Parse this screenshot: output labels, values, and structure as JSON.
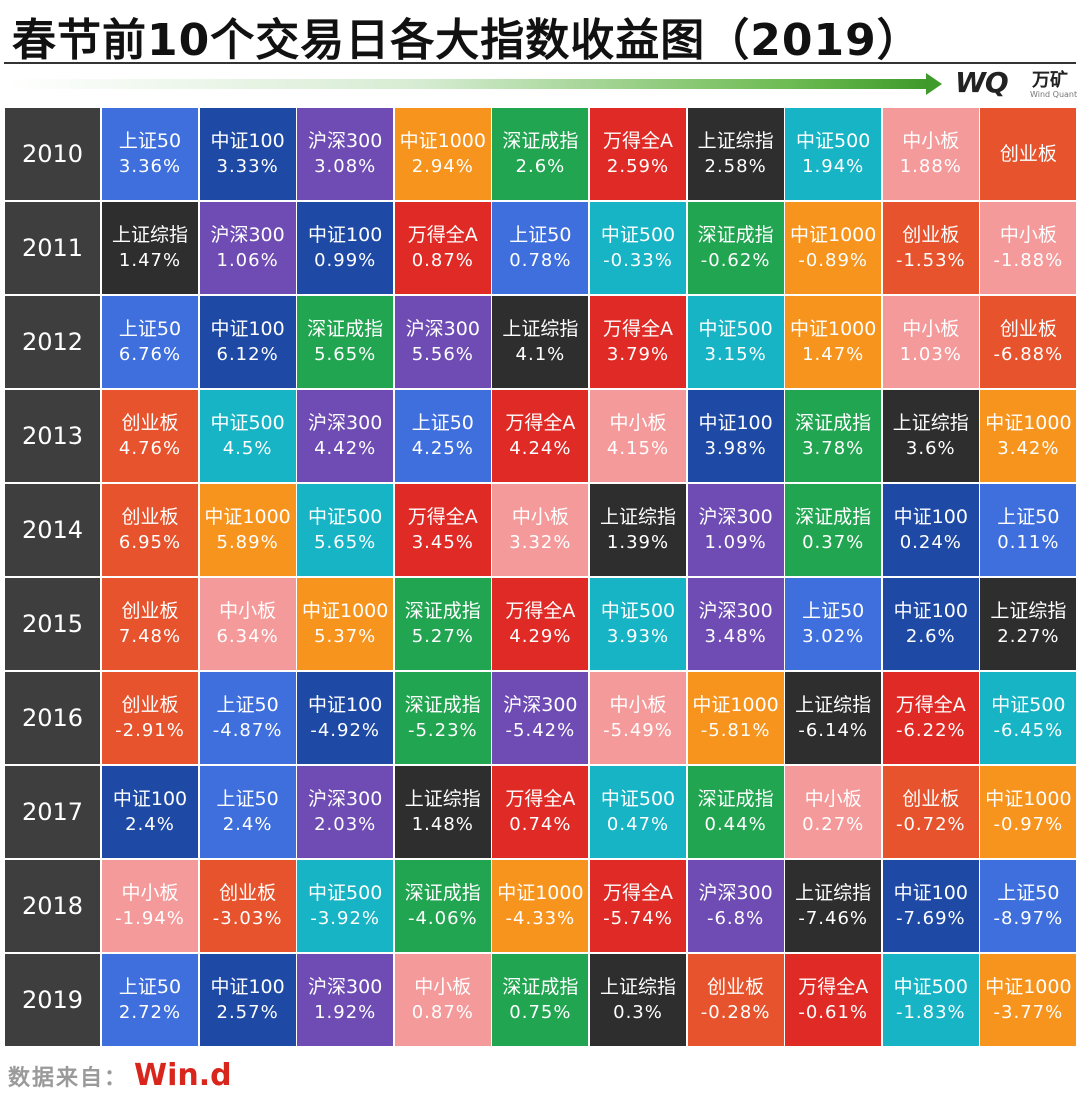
{
  "title": "春节前10个交易日各大指数收益图（2019）",
  "brand": {
    "logo": "WQ",
    "name": "万矿",
    "sub": "Wind Quant"
  },
  "footer": {
    "label": "数据来自：",
    "value": "Win.d"
  },
  "colors": {
    "上证50": "#3f6fdd",
    "中证100": "#1e4aa6",
    "沪深300": "#6e4cb3",
    "中证1000": "#f7941d",
    "深证成指": "#22a551",
    "万得全A": "#e02a26",
    "上证综指": "#2e2e2e",
    "中证500": "#16b4c5",
    "中小板": "#f59a9a",
    "创业板": "#e6532d",
    "year": "#3e3e3e"
  },
  "chart_data": {
    "type": "table",
    "title": "春节前10个交易日各大指数收益图（2019）",
    "rows": [
      {
        "year": "2010",
        "cells": [
          {
            "name": "上证50",
            "value": "3.36%"
          },
          {
            "name": "中证100",
            "value": "3.33%"
          },
          {
            "name": "沪深300",
            "value": "3.08%"
          },
          {
            "name": "中证1000",
            "value": "2.94%"
          },
          {
            "name": "深证成指",
            "value": "2.6%"
          },
          {
            "name": "万得全A",
            "value": "2.59%"
          },
          {
            "name": "上证综指",
            "value": "2.58%"
          },
          {
            "name": "中证500",
            "value": "1.94%"
          },
          {
            "name": "中小板",
            "value": "1.88%"
          },
          {
            "name": "创业板",
            "value": ""
          }
        ]
      },
      {
        "year": "2011",
        "cells": [
          {
            "name": "上证综指",
            "value": "1.47%"
          },
          {
            "name": "沪深300",
            "value": "1.06%"
          },
          {
            "name": "中证100",
            "value": "0.99%"
          },
          {
            "name": "万得全A",
            "value": "0.87%"
          },
          {
            "name": "上证50",
            "value": "0.78%"
          },
          {
            "name": "中证500",
            "value": "-0.33%"
          },
          {
            "name": "深证成指",
            "value": "-0.62%"
          },
          {
            "name": "中证1000",
            "value": "-0.89%"
          },
          {
            "name": "创业板",
            "value": "-1.53%"
          },
          {
            "name": "中小板",
            "value": "-1.88%"
          }
        ]
      },
      {
        "year": "2012",
        "cells": [
          {
            "name": "上证50",
            "value": "6.76%"
          },
          {
            "name": "中证100",
            "value": "6.12%"
          },
          {
            "name": "深证成指",
            "value": "5.65%"
          },
          {
            "name": "沪深300",
            "value": "5.56%"
          },
          {
            "name": "上证综指",
            "value": "4.1%"
          },
          {
            "name": "万得全A",
            "value": "3.79%"
          },
          {
            "name": "中证500",
            "value": "3.15%"
          },
          {
            "name": "中证1000",
            "value": "1.47%"
          },
          {
            "name": "中小板",
            "value": "1.03%"
          },
          {
            "name": "创业板",
            "value": "-6.88%"
          }
        ]
      },
      {
        "year": "2013",
        "cells": [
          {
            "name": "创业板",
            "value": "4.76%"
          },
          {
            "name": "中证500",
            "value": "4.5%"
          },
          {
            "name": "沪深300",
            "value": "4.42%"
          },
          {
            "name": "上证50",
            "value": "4.25%"
          },
          {
            "name": "万得全A",
            "value": "4.24%"
          },
          {
            "name": "中小板",
            "value": "4.15%"
          },
          {
            "name": "中证100",
            "value": "3.98%"
          },
          {
            "name": "深证成指",
            "value": "3.78%"
          },
          {
            "name": "上证综指",
            "value": "3.6%"
          },
          {
            "name": "中证1000",
            "value": "3.42%"
          }
        ]
      },
      {
        "year": "2014",
        "cells": [
          {
            "name": "创业板",
            "value": "6.95%"
          },
          {
            "name": "中证1000",
            "value": "5.89%"
          },
          {
            "name": "中证500",
            "value": "5.65%"
          },
          {
            "name": "万得全A",
            "value": "3.45%"
          },
          {
            "name": "中小板",
            "value": "3.32%"
          },
          {
            "name": "上证综指",
            "value": "1.39%"
          },
          {
            "name": "沪深300",
            "value": "1.09%"
          },
          {
            "name": "深证成指",
            "value": "0.37%"
          },
          {
            "name": "中证100",
            "value": "0.24%"
          },
          {
            "name": "上证50",
            "value": "0.11%"
          }
        ]
      },
      {
        "year": "2015",
        "cells": [
          {
            "name": "创业板",
            "value": "7.48%"
          },
          {
            "name": "中小板",
            "value": "6.34%"
          },
          {
            "name": "中证1000",
            "value": "5.37%"
          },
          {
            "name": "深证成指",
            "value": "5.27%"
          },
          {
            "name": "万得全A",
            "value": "4.29%"
          },
          {
            "name": "中证500",
            "value": "3.93%"
          },
          {
            "name": "沪深300",
            "value": "3.48%"
          },
          {
            "name": "上证50",
            "value": "3.02%"
          },
          {
            "name": "中证100",
            "value": "2.6%"
          },
          {
            "name": "上证综指",
            "value": "2.27%"
          }
        ]
      },
      {
        "year": "2016",
        "cells": [
          {
            "name": "创业板",
            "value": "-2.91%"
          },
          {
            "name": "上证50",
            "value": "-4.87%"
          },
          {
            "name": "中证100",
            "value": "-4.92%"
          },
          {
            "name": "深证成指",
            "value": "-5.23%"
          },
          {
            "name": "沪深300",
            "value": "-5.42%"
          },
          {
            "name": "中小板",
            "value": "-5.49%"
          },
          {
            "name": "中证1000",
            "value": "-5.81%"
          },
          {
            "name": "上证综指",
            "value": "-6.14%"
          },
          {
            "name": "万得全A",
            "value": "-6.22%"
          },
          {
            "name": "中证500",
            "value": "-6.45%"
          }
        ]
      },
      {
        "year": "2017",
        "cells": [
          {
            "name": "中证100",
            "value": "2.4%"
          },
          {
            "name": "上证50",
            "value": "2.4%"
          },
          {
            "name": "沪深300",
            "value": "2.03%"
          },
          {
            "name": "上证综指",
            "value": "1.48%"
          },
          {
            "name": "万得全A",
            "value": "0.74%"
          },
          {
            "name": "中证500",
            "value": "0.47%"
          },
          {
            "name": "深证成指",
            "value": "0.44%"
          },
          {
            "name": "中小板",
            "value": "0.27%"
          },
          {
            "name": "创业板",
            "value": "-0.72%"
          },
          {
            "name": "中证1000",
            "value": "-0.97%"
          }
        ]
      },
      {
        "year": "2018",
        "cells": [
          {
            "name": "中小板",
            "value": "-1.94%"
          },
          {
            "name": "创业板",
            "value": "-3.03%"
          },
          {
            "name": "中证500",
            "value": "-3.92%"
          },
          {
            "name": "深证成指",
            "value": "-4.06%"
          },
          {
            "name": "中证1000",
            "value": "-4.33%"
          },
          {
            "name": "万得全A",
            "value": "-5.74%"
          },
          {
            "name": "沪深300",
            "value": "-6.8%"
          },
          {
            "name": "上证综指",
            "value": "-7.46%"
          },
          {
            "name": "中证100",
            "value": "-7.69%"
          },
          {
            "name": "上证50",
            "value": "-8.97%"
          }
        ]
      },
      {
        "year": "2019",
        "cells": [
          {
            "name": "上证50",
            "value": "2.72%"
          },
          {
            "name": "中证100",
            "value": "2.57%"
          },
          {
            "name": "沪深300",
            "value": "1.92%"
          },
          {
            "name": "中小板",
            "value": "0.87%"
          },
          {
            "name": "深证成指",
            "value": "0.75%"
          },
          {
            "name": "上证综指",
            "value": "0.3%"
          },
          {
            "name": "创业板",
            "value": "-0.28%"
          },
          {
            "name": "万得全A",
            "value": "-0.61%"
          },
          {
            "name": "中证500",
            "value": "-1.83%"
          },
          {
            "name": "中证1000",
            "value": "-3.77%"
          }
        ]
      }
    ]
  }
}
